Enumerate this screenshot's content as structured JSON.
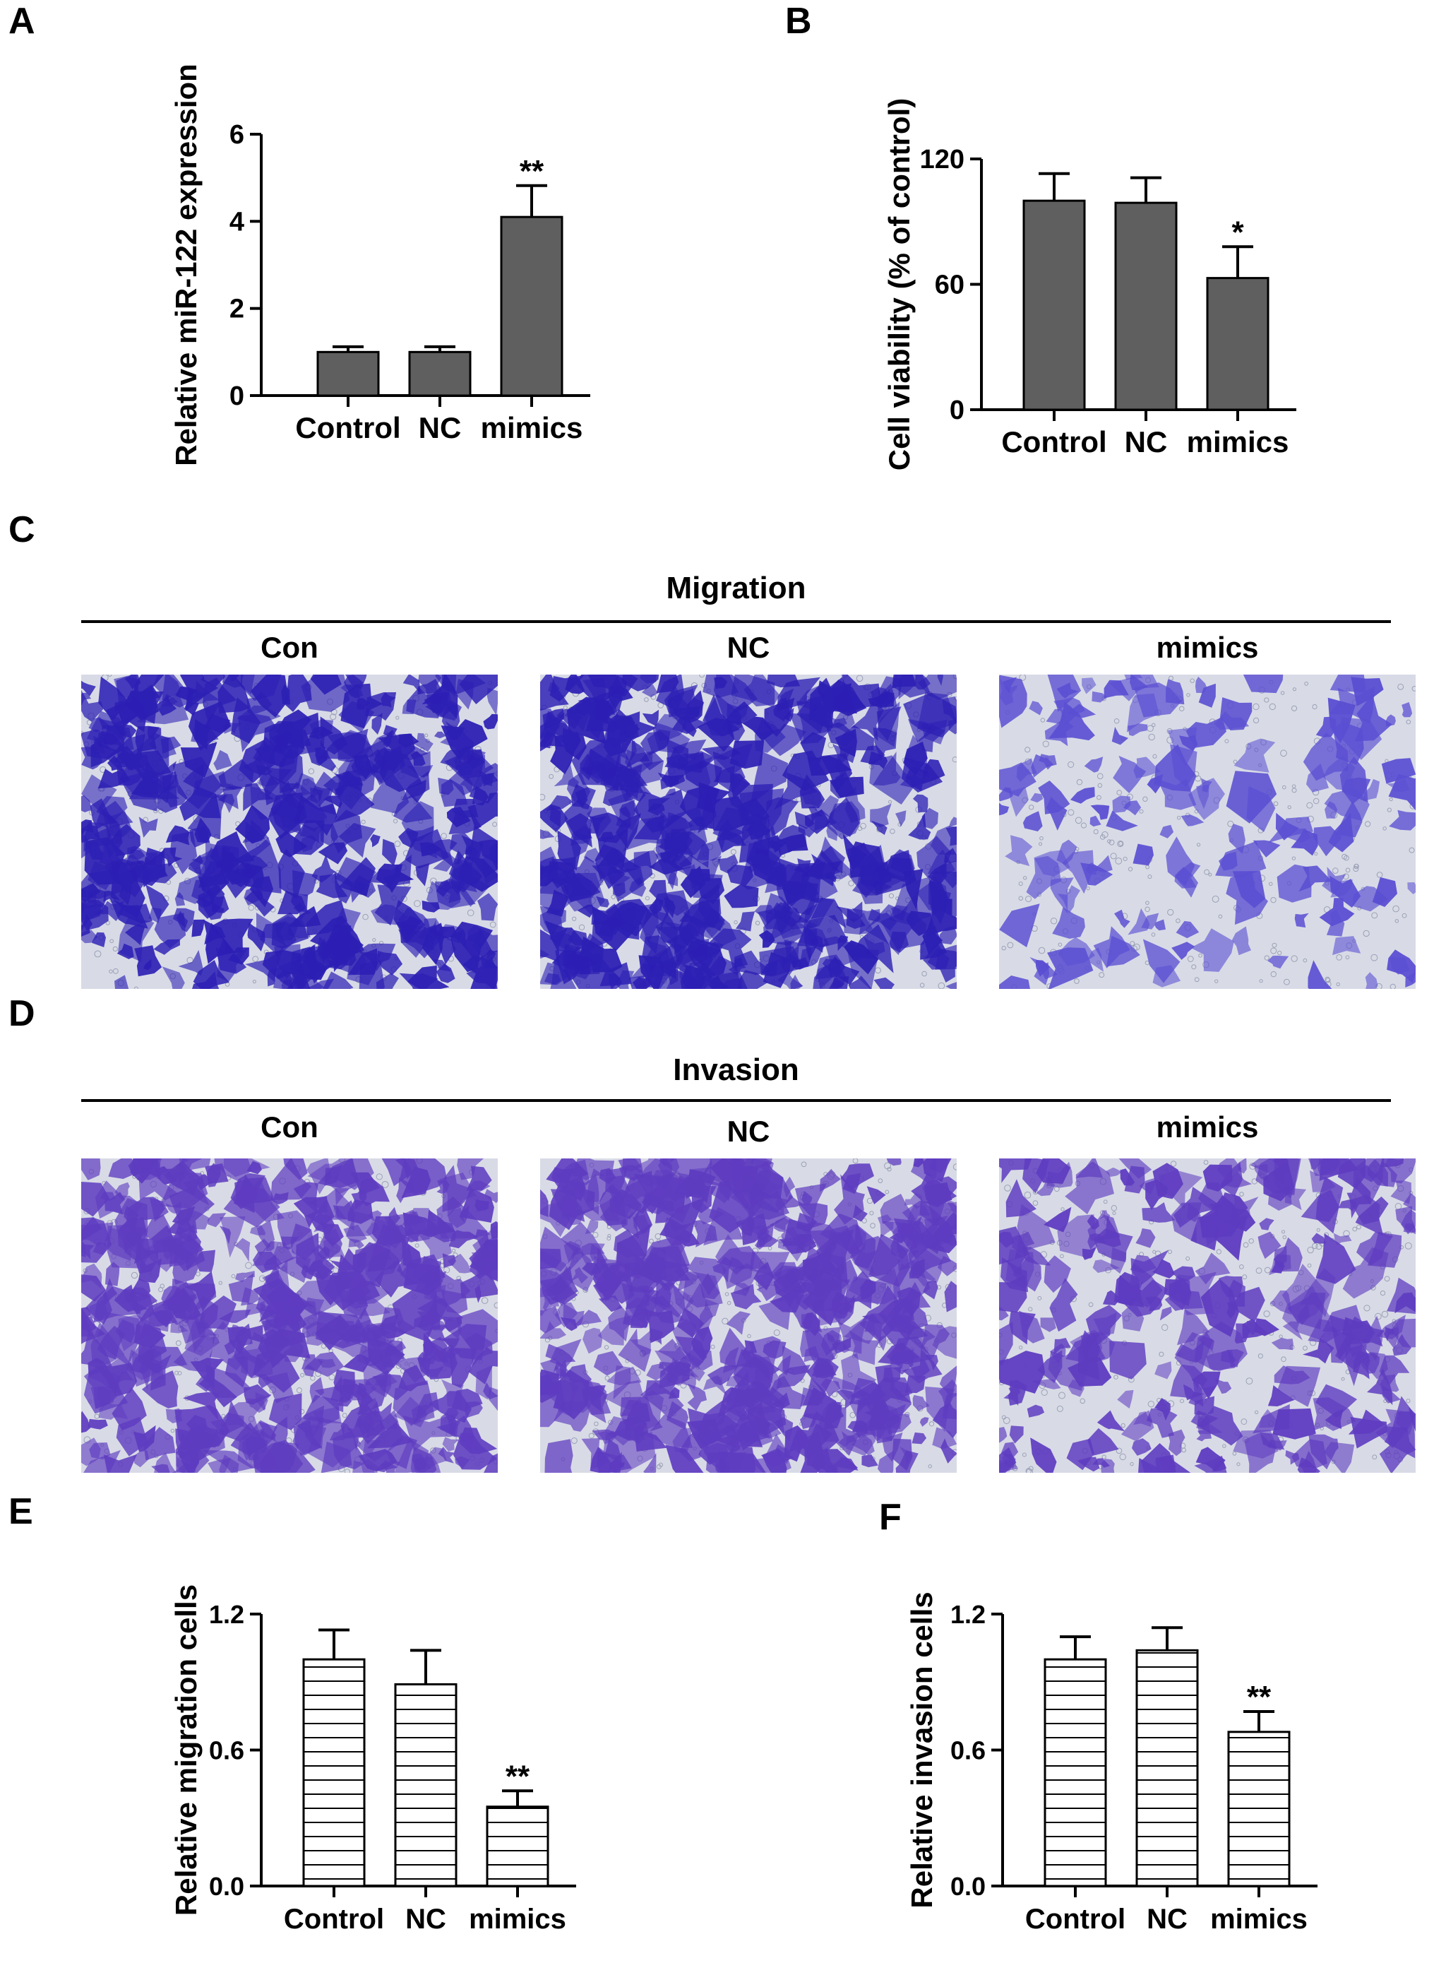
{
  "panels": {
    "a": {
      "letter": "A"
    },
    "b": {
      "letter": "B"
    },
    "c": {
      "letter": "C",
      "section_title": "Migration",
      "columns": [
        "Con",
        "NC",
        "mimics"
      ]
    },
    "d": {
      "letter": "D",
      "section_title": "Invasion",
      "columns": [
        "Con",
        "NC",
        "mimics"
      ]
    },
    "e": {
      "letter": "E"
    },
    "f": {
      "letter": "F"
    }
  },
  "colors": {
    "bar_fill": "#5f5f5f",
    "stain_dark": "#2c1fb4",
    "stain_mid": "#5a4ed2",
    "stain_invasion": "#5e3cc0",
    "background_micro": "#d8dbe6"
  },
  "chart_data": [
    {
      "id": "A",
      "type": "bar",
      "categories": [
        "Control",
        "NC",
        "mimics"
      ],
      "values": [
        1.0,
        1.0,
        4.1
      ],
      "errors": [
        0.12,
        0.12,
        0.72
      ],
      "significance": [
        "",
        "",
        "**"
      ],
      "ylabel": "Relative miR-122 expression",
      "yticks": [
        0,
        2,
        4,
        6
      ],
      "ylim": [
        0,
        6
      ],
      "bar_style": "solid-grey"
    },
    {
      "id": "B",
      "type": "bar",
      "categories": [
        "Control",
        "NC",
        "mimics"
      ],
      "values": [
        100,
        99,
        63
      ],
      "errors": [
        13,
        12,
        15
      ],
      "significance": [
        "",
        "",
        "*"
      ],
      "ylabel": "Cell viability (% of control)",
      "yticks": [
        0,
        60,
        120
      ],
      "ylim": [
        0,
        130
      ],
      "bar_style": "solid-grey"
    },
    {
      "id": "E",
      "type": "bar",
      "categories": [
        "Control",
        "NC",
        "mimics"
      ],
      "values": [
        1.0,
        0.89,
        0.35
      ],
      "errors": [
        0.13,
        0.15,
        0.07
      ],
      "significance": [
        "",
        "",
        "**"
      ],
      "ylabel": "Relative migration cells",
      "yticks": [
        "0.0",
        "0.6",
        "1.2"
      ],
      "ylim": [
        0,
        1.2
      ],
      "bar_style": "horizontal-hatch"
    },
    {
      "id": "F",
      "type": "bar",
      "categories": [
        "Control",
        "NC",
        "mimics"
      ],
      "values": [
        1.0,
        1.04,
        0.68
      ],
      "errors": [
        0.1,
        0.1,
        0.09
      ],
      "significance": [
        "",
        "",
        "**"
      ],
      "ylabel": "Relative invasion cells",
      "yticks": [
        "0.0",
        "0.6",
        "1.2"
      ],
      "ylim": [
        0,
        1.2
      ],
      "bar_style": "horizontal-hatch"
    }
  ]
}
